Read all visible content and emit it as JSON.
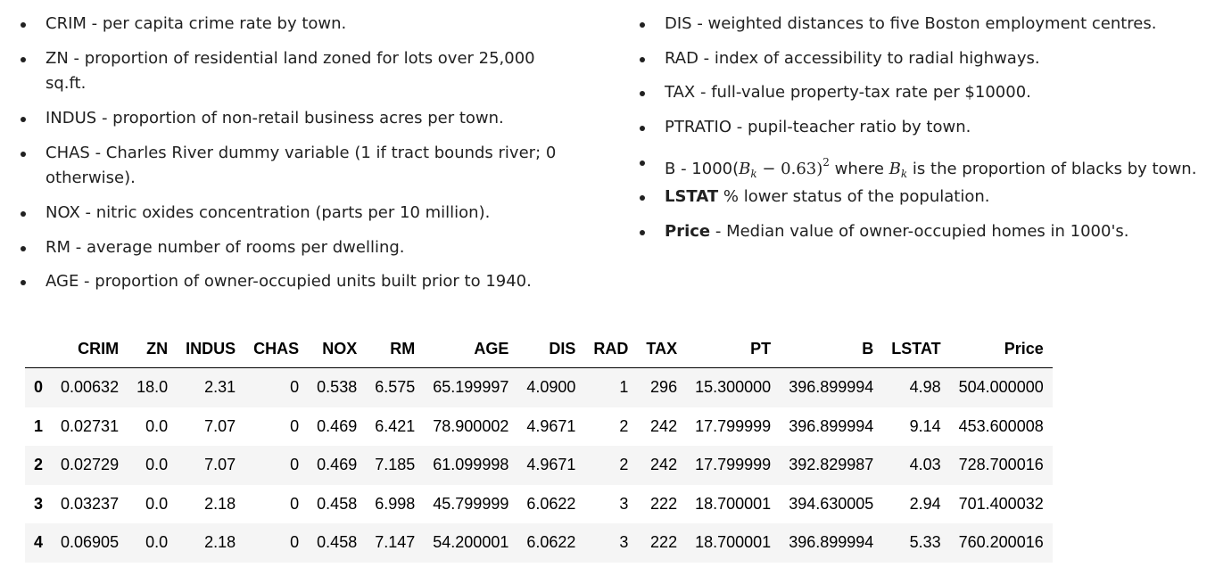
{
  "left_list": [
    {
      "term": "CRIM",
      "desc": " - per capita crime rate by town."
    },
    {
      "term": "ZN",
      "desc": " - proportion of residential land zoned for lots over 25,000 sq.ft."
    },
    {
      "term": "INDUS",
      "desc": " - proportion of non-retail business acres per town."
    },
    {
      "term": "CHAS",
      "desc": " - Charles River dummy variable (1 if tract bounds river; 0 otherwise)."
    },
    {
      "term": "NOX",
      "desc": " - nitric oxides concentration (parts per 10 million)."
    },
    {
      "term": "RM",
      "desc": " - average number of rooms per dwelling."
    },
    {
      "term": "AGE",
      "desc": " - proportion of owner-occupied units built prior to 1940."
    }
  ],
  "right_list": {
    "dis": {
      "term": "DIS",
      "desc": " - weighted distances to five Boston employment centres."
    },
    "rad": {
      "term": "RAD",
      "desc": " - index of accessibility to radial highways."
    },
    "tax": {
      "term": "TAX",
      "desc": " - full-value property-tax rate per $10000."
    },
    "ptratio": {
      "term": "PTRATIO",
      "desc": " - pupil-teacher ratio by town."
    },
    "b": {
      "term": "B",
      "prefix": " - 1000(",
      "var": "B",
      "sub": "k",
      "mid": " − 0.63)",
      "sup": "2",
      "where": " where ",
      "var2": "B",
      "sub2": "k",
      "suffix": " is the proportion of blacks by town."
    },
    "lstat": {
      "term": "LSTAT",
      "desc": " % lower status of the population."
    },
    "price": {
      "term": "Price",
      "desc": " - Median value of owner-occupied homes in 1000's."
    }
  },
  "table": {
    "columns": [
      "",
      "CRIM",
      "ZN",
      "INDUS",
      "CHAS",
      "NOX",
      "RM",
      "AGE",
      "DIS",
      "RAD",
      "TAX",
      "PT",
      "B",
      "LSTAT",
      "Price"
    ],
    "rows": [
      [
        "0",
        "0.00632",
        "18.0",
        "2.31",
        "0",
        "0.538",
        "6.575",
        "65.199997",
        "4.0900",
        "1",
        "296",
        "15.300000",
        "396.899994",
        "4.98",
        "504.000000"
      ],
      [
        "1",
        "0.02731",
        "0.0",
        "7.07",
        "0",
        "0.469",
        "6.421",
        "78.900002",
        "4.9671",
        "2",
        "242",
        "17.799999",
        "396.899994",
        "9.14",
        "453.600008"
      ],
      [
        "2",
        "0.02729",
        "0.0",
        "7.07",
        "0",
        "0.469",
        "7.185",
        "61.099998",
        "4.9671",
        "2",
        "242",
        "17.799999",
        "392.829987",
        "4.03",
        "728.700016"
      ],
      [
        "3",
        "0.03237",
        "0.0",
        "2.18",
        "0",
        "0.458",
        "6.998",
        "45.799999",
        "6.0622",
        "3",
        "222",
        "18.700001",
        "394.630005",
        "2.94",
        "701.400032"
      ],
      [
        "4",
        "0.06905",
        "0.0",
        "2.18",
        "0",
        "0.458",
        "7.147",
        "54.200001",
        "6.0622",
        "3",
        "222",
        "18.700001",
        "396.899994",
        "5.33",
        "760.200016"
      ]
    ]
  }
}
